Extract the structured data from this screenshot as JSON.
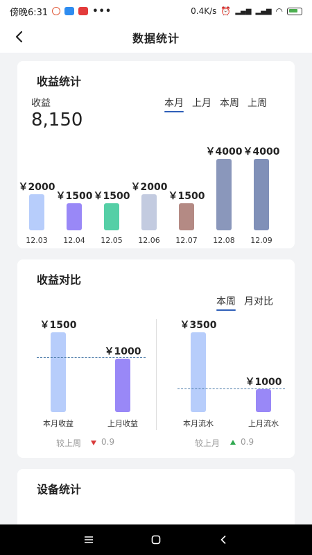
{
  "status": {
    "time": "傍晚6:31",
    "dots": "•••",
    "net_speed": "0.4K/s"
  },
  "header": {
    "title": "数据统计"
  },
  "income_stats": {
    "title": "收益统计",
    "label": "收益",
    "total": "8,150",
    "tabs": [
      {
        "label": "本月",
        "active": true
      },
      {
        "label": "上月",
        "active": false
      },
      {
        "label": "本周",
        "active": false
      },
      {
        "label": "上周",
        "active": false
      }
    ]
  },
  "income_compare": {
    "title": "收益对比",
    "tabs": [
      {
        "label": "本周",
        "active": true
      },
      {
        "label": "月对比",
        "active": false
      }
    ],
    "left_note": "较上周",
    "left_change": "0.9",
    "right_note": "较上月",
    "right_change": "0.9"
  },
  "device_stats": {
    "title": "设备统计"
  },
  "chart_data": [
    {
      "type": "bar",
      "categories": [
        "12.03",
        "12.04",
        "12.05",
        "12.06",
        "12.07",
        "12.08",
        "12.09"
      ],
      "values": [
        2000,
        1500,
        1500,
        2000,
        1500,
        4000,
        4000
      ],
      "value_labels": [
        "￥2000",
        "￥1500",
        "￥1500",
        "￥2000",
        "￥1500",
        "￥4000",
        "￥4000"
      ],
      "colors": [
        "#b7cdfb",
        "#9988f7",
        "#55cfa6",
        "#c3cbe0",
        "#b48a84",
        "#8a97bb",
        "#8090b8"
      ],
      "ylim": [
        0,
        4000
      ]
    },
    {
      "type": "bar",
      "categories": [
        "本月收益",
        "上月收益"
      ],
      "values": [
        1500,
        1000
      ],
      "value_labels": [
        "￥1500",
        "￥1000"
      ],
      "colors": [
        "#b7cdfb",
        "#9988f7"
      ],
      "ylim": [
        0,
        1500
      ]
    },
    {
      "type": "bar",
      "categories": [
        "本月流水",
        "上月流水"
      ],
      "values": [
        3500,
        1000
      ],
      "value_labels": [
        "￥3500",
        "￥1000"
      ],
      "colors": [
        "#b7cdfb",
        "#9988f7"
      ],
      "ylim": [
        0,
        3500
      ]
    }
  ],
  "nav": {
    "icons": [
      "menu-icon",
      "home-square-icon",
      "back-chevron-icon"
    ]
  }
}
